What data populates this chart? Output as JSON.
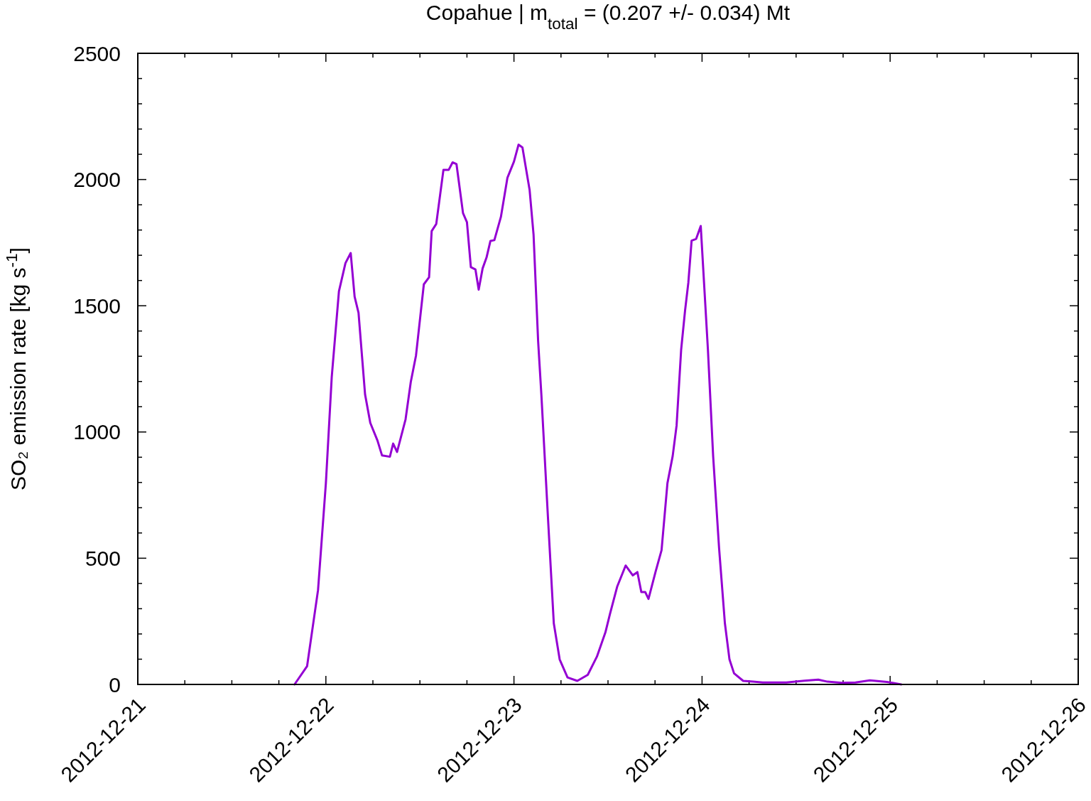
{
  "chart_data": {
    "type": "line",
    "title": "Copahue | m$_{total}$ = (0.207 +/- 0.034) Mt",
    "ylabel": "SO₂ emission rate [kg s$^{-1}$]",
    "xlim": [
      "2012-12-21",
      "2012-12-26"
    ],
    "xticks": [
      {
        "value": "2012-12-21",
        "label": "2012-12-21"
      },
      {
        "value": "2012-12-21T06:00",
        "label": null
      },
      {
        "value": "2012-12-21T12:00",
        "label": null
      },
      {
        "value": "2012-12-21T18:00",
        "label": null
      },
      {
        "value": "2012-12-22",
        "label": "2012-12-22"
      },
      {
        "value": "2012-12-22T06:00",
        "label": null
      },
      {
        "value": "2012-12-22T12:00",
        "label": null
      },
      {
        "value": "2012-12-22T18:00",
        "label": null
      },
      {
        "value": "2012-12-23",
        "label": "2012-12-23"
      },
      {
        "value": "2012-12-23T06:00",
        "label": null
      },
      {
        "value": "2012-12-23T12:00",
        "label": null
      },
      {
        "value": "2012-12-23T18:00",
        "label": null
      },
      {
        "value": "2012-12-24",
        "label": "2012-12-24"
      },
      {
        "value": "2012-12-24T06:00",
        "label": null
      },
      {
        "value": "2012-12-24T12:00",
        "label": null
      },
      {
        "value": "2012-12-24T18:00",
        "label": null
      },
      {
        "value": "2012-12-25",
        "label": "2012-12-25"
      },
      {
        "value": "2012-12-25T06:00",
        "label": null
      },
      {
        "value": "2012-12-25T12:00",
        "label": null
      },
      {
        "value": "2012-12-25T18:00",
        "label": null
      },
      {
        "value": "2012-12-26",
        "label": "2012-12-26"
      }
    ],
    "ylim": [
      0,
      2500
    ],
    "yticks": [
      0,
      {
        "value": 100,
        "label": null
      },
      {
        "value": 200,
        "label": null
      },
      {
        "value": 300,
        "label": null
      },
      {
        "value": 400,
        "label": null
      },
      500,
      {
        "value": 600,
        "label": null
      },
      {
        "value": 700,
        "label": null
      },
      {
        "value": 800,
        "label": null
      },
      {
        "value": 900,
        "label": null
      },
      1000,
      {
        "value": 1100,
        "label": null
      },
      {
        "value": 1200,
        "label": null
      },
      {
        "value": 1300,
        "label": null
      },
      {
        "value": 1400,
        "label": null
      },
      1500,
      {
        "value": 1600,
        "label": null
      },
      {
        "value": 1700,
        "label": null
      },
      {
        "value": 1800,
        "label": null
      },
      {
        "value": 1900,
        "label": null
      },
      2000,
      {
        "value": 2100,
        "label": null
      },
      {
        "value": 2200,
        "label": null
      },
      {
        "value": 2300,
        "label": null
      },
      {
        "value": 2400,
        "label": null
      },
      2500
    ],
    "x": [
      "2012-12-21T20:00",
      "2012-12-21T21:36",
      "2012-12-21T23:00",
      "2012-12-22T00:00",
      "2012-12-22T00:45",
      "2012-12-22T01:40",
      "2012-12-22T02:30",
      "2012-12-22T03:10",
      "2012-12-22T03:40",
      "2012-12-22T04:10",
      "2012-12-22T05:00",
      "2012-12-22T05:40",
      "2012-12-22T06:35",
      "2012-12-22T07:10",
      "2012-12-22T08:10",
      "2012-12-22T08:35",
      "2012-12-22T09:05",
      "2012-12-22T10:10",
      "2012-12-22T10:50",
      "2012-12-22T11:30",
      "2012-12-22T12:30",
      "2012-12-22T13:10",
      "2012-12-22T13:30",
      "2012-12-22T14:05",
      "2012-12-22T15:00",
      "2012-12-22T15:40",
      "2012-12-22T16:10",
      "2012-12-22T16:40",
      "2012-12-22T17:30",
      "2012-12-22T18:00",
      "2012-12-22T18:30",
      "2012-12-22T19:05",
      "2012-12-22T19:30",
      "2012-12-22T20:00",
      "2012-12-22T20:30",
      "2012-12-22T21:00",
      "2012-12-22T21:30",
      "2012-12-22T22:20",
      "2012-12-22T23:10",
      "2012-12-23T00:00",
      "2012-12-23T00:35",
      "2012-12-23T01:05",
      "2012-12-23T02:00",
      "2012-12-23T02:30",
      "2012-12-23T03:05",
      "2012-12-23T03:30",
      "2012-12-23T04:20",
      "2012-12-23T05:05",
      "2012-12-23T05:50",
      "2012-12-23T06:50",
      "2012-12-23T08:05",
      "2012-12-23T09:25",
      "2012-12-23T10:35",
      "2012-12-23T11:40",
      "2012-12-23T12:15",
      "2012-12-23T13:10",
      "2012-12-23T14:15",
      "2012-12-23T15:10",
      "2012-12-23T15:45",
      "2012-12-23T16:15",
      "2012-12-23T16:45",
      "2012-12-23T17:10",
      "2012-12-23T18:05",
      "2012-12-23T18:50",
      "2012-12-23T19:35",
      "2012-12-23T20:15",
      "2012-12-23T20:45",
      "2012-12-23T21:20",
      "2012-12-23T21:50",
      "2012-12-23T22:15",
      "2012-12-23T22:40",
      "2012-12-23T23:15",
      "2012-12-23T23:50",
      "2012-12-24T00:45",
      "2012-12-24T01:25",
      "2012-12-24T02:10",
      "2012-12-24T02:55",
      "2012-12-24T03:30",
      "2012-12-24T04:05",
      "2012-12-24T05:15",
      "2012-12-24T06:30",
      "2012-12-24T07:45",
      "2012-12-24T10:45",
      "2012-12-24T13:05",
      "2012-12-24T14:50",
      "2012-12-24T16:00",
      "2012-12-24T17:50",
      "2012-12-24T19:35",
      "2012-12-24T21:25",
      "2012-12-24T23:35",
      "2012-12-25T00:25",
      "2012-12-25T01:25"
    ],
    "series": [
      {
        "color": "#9400d3",
        "values": [
          0,
          72,
          374,
          797,
          1219,
          1557,
          1669,
          1709,
          1536,
          1472,
          1149,
          1036,
          966,
          907,
          902,
          954,
          921,
          1050,
          1198,
          1303,
          1585,
          1613,
          1796,
          1824,
          2038,
          2038,
          2068,
          2061,
          1867,
          1831,
          1653,
          1644,
          1564,
          1648,
          1691,
          1757,
          1760,
          1852,
          2007,
          2071,
          2138,
          2127,
          1958,
          1782,
          1360,
          1146,
          664,
          242,
          99,
          28,
          14,
          38,
          110,
          206,
          279,
          387,
          471,
          432,
          445,
          366,
          366,
          339,
          448,
          532,
          797,
          904,
          1025,
          1326,
          1481,
          1591,
          1758,
          1765,
          1816,
          1326,
          904,
          543,
          242,
          99,
          44,
          14,
          11,
          8,
          8,
          15,
          19,
          11,
          6,
          8,
          16,
          10,
          6,
          0
        ]
      }
    ]
  }
}
